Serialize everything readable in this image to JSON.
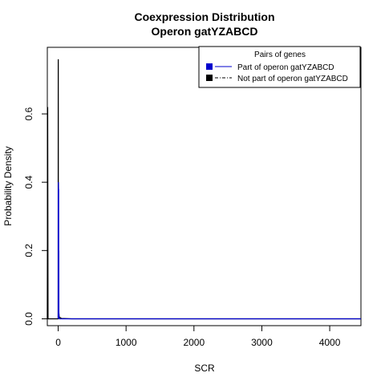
{
  "chart_data": {
    "type": "line",
    "title": "Coexpression Distribution",
    "subtitle": "Operon gatYZABCD",
    "xlabel": "SCR",
    "ylabel": "Probability Density",
    "xlim": [
      -160,
      4460
    ],
    "ylim": [
      -0.02,
      0.795
    ],
    "x_ticks": [
      0,
      1000,
      2000,
      3000,
      4000
    ],
    "y_ticks": [
      0.0,
      0.2,
      0.4,
      0.6
    ],
    "grid": false,
    "legend": {
      "title": "Pairs of genes",
      "placement": "top-right",
      "entries": [
        {
          "label": "Part of operon gatYZABCD",
          "color": "#0000cd",
          "line": "solid"
        },
        {
          "label": "Not part of operon gatYZABCD",
          "color": "#000000",
          "line": "dashdot"
        }
      ]
    },
    "series": [
      {
        "label": "Part of operon gatYZABCD",
        "color": "#0000cd",
        "x": [
          0,
          1,
          2,
          3,
          4,
          5,
          6,
          7,
          8,
          9,
          10,
          12,
          15,
          20,
          4460
        ],
        "y": [
          0.0,
          0.38,
          0.09,
          0.38,
          0.4,
          0.38,
          0.09,
          0.38,
          0.05,
          0.2,
          0.02,
          0.004,
          0.001,
          0.0,
          0.0
        ]
      },
      {
        "label": "Not part of operon gatYZABCD",
        "color": "#000000",
        "x": [
          -160,
          -155,
          -150,
          0,
          1,
          2,
          3,
          4,
          5,
          8,
          15,
          50,
          200,
          1000,
          2000,
          3000,
          4000,
          4460
        ],
        "y": [
          0.0,
          0.62,
          0.0,
          0.0,
          0.76,
          0.3,
          0.2,
          0.12,
          0.06,
          0.02,
          0.005,
          0.001,
          0.0,
          0.0,
          0.0,
          0.0,
          0.0,
          0.0
        ]
      }
    ]
  }
}
